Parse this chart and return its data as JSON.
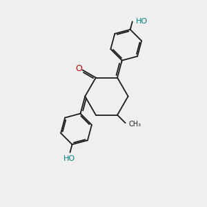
{
  "bg_color": "#efefef",
  "bond_color": "#1a1a1a",
  "bond_width": 1.3,
  "atom_O_color": "#cc0000",
  "atom_HO_color": "#008080",
  "font_size_O": 9,
  "font_size_HO": 8,
  "fig_width": 3.0,
  "fig_height": 3.0,
  "dpi": 100,
  "xlim": [
    0,
    10
  ],
  "ylim": [
    0,
    10
  ]
}
